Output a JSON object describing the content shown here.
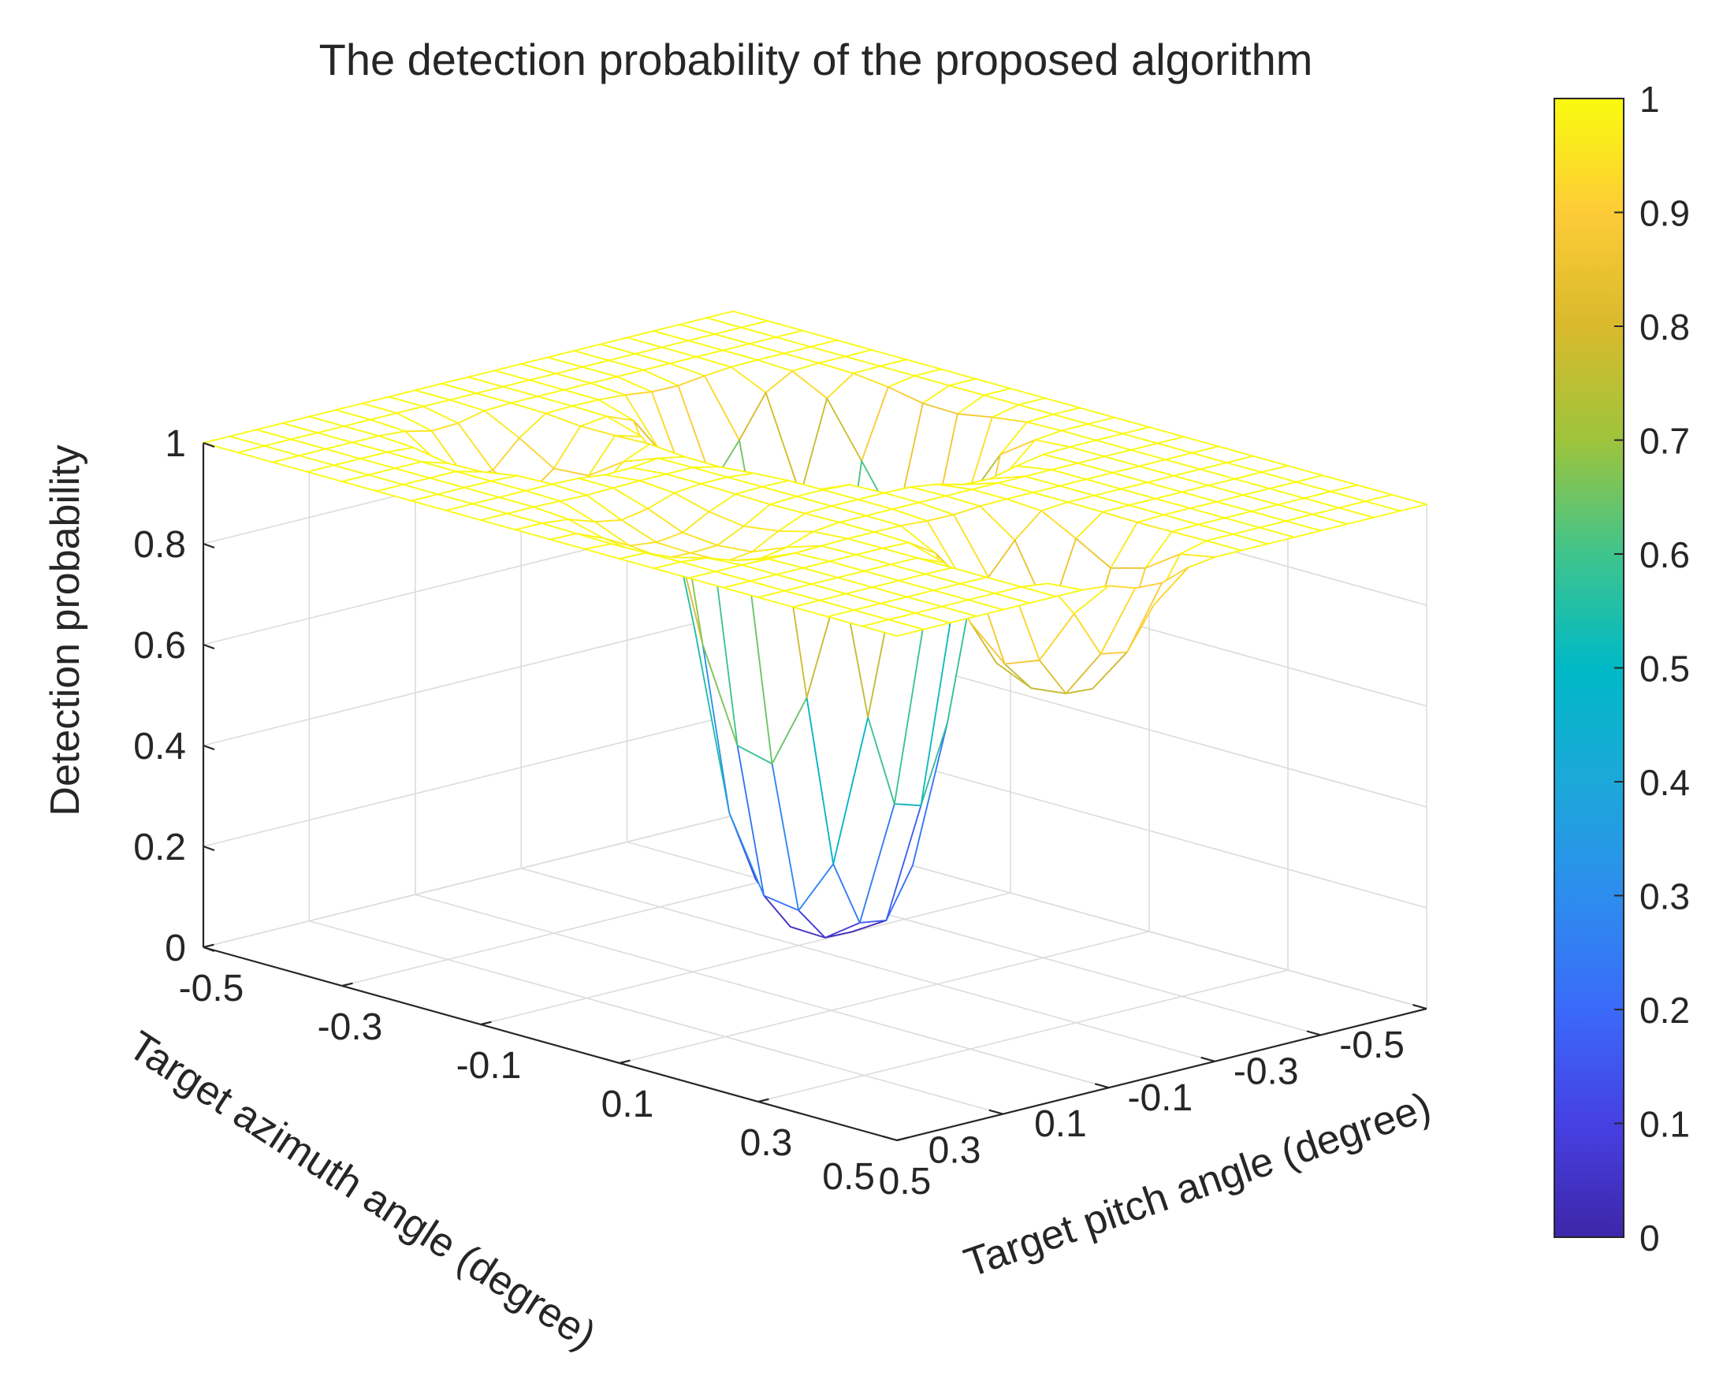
{
  "chart_data": {
    "type": "surface",
    "title": "The detection probability of the proposed algorithm",
    "xlabel": "Target pitch angle (degree)",
    "ylabel": "Target azimuth angle (degree)",
    "zlabel": "Detection probability",
    "x_ticks": [
      "-0.5",
      "-0.3",
      "-0.1",
      "0.1",
      "0.3",
      "0.5"
    ],
    "y_ticks": [
      "-0.5",
      "-0.3",
      "-0.1",
      "0.1",
      "0.3",
      "0.5"
    ],
    "z_ticks": [
      "0",
      "0.2",
      "0.4",
      "0.6",
      "0.8",
      "1"
    ],
    "colorbar_ticks": [
      "0",
      "0.1",
      "0.2",
      "0.3",
      "0.4",
      "0.5",
      "0.6",
      "0.7",
      "0.8",
      "0.9",
      "1"
    ],
    "xlim": [
      -0.5,
      0.5
    ],
    "ylim": [
      -0.5,
      0.5
    ],
    "zlim": [
      0,
      1
    ],
    "grid": true,
    "colormap": "parula",
    "colorbar": "right",
    "grid_size": 21,
    "surface_model": {
      "baseline": 1.0,
      "dips": [
        {
          "pitch": -0.12,
          "azimuth": -0.18,
          "depth": 1.0,
          "width": 0.14
        },
        {
          "pitch": 0.36,
          "azimuth": 0.02,
          "depth": 0.28,
          "width": 0.1
        },
        {
          "pitch": -0.28,
          "azimuth": 0.18,
          "depth": 0.12,
          "width": 0.09
        },
        {
          "pitch": 0.05,
          "azimuth": 0.3,
          "depth": 0.06,
          "width": 0.1
        }
      ]
    }
  }
}
